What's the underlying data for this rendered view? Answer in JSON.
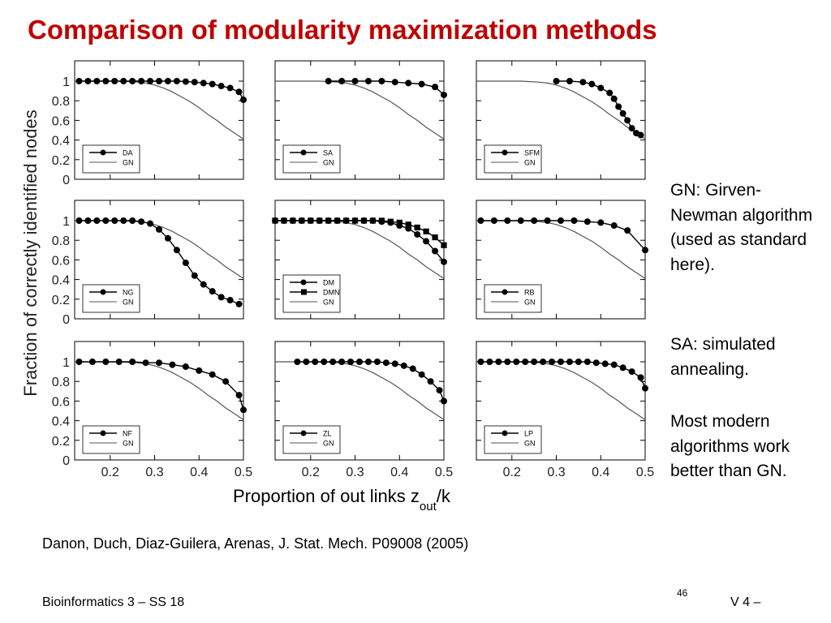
{
  "slide": {
    "title": "Comparison of modularity maximization methods",
    "citation": "Danon, Duch, Diaz-Guilera, Arenas, J. Stat. Mech. P09008 (2005)",
    "footer_left": "Bioinformatics 3 – SS 18",
    "page_number": "46",
    "footer_right": "V 4 –",
    "notes": [
      "GN: Girven-Newman algorithm (used as standard here).",
      "SA: simulated annealing.",
      "Most modern algorithms work better than GN."
    ],
    "colors": {
      "title": "#c00000"
    }
  },
  "chart_data": {
    "type": "line",
    "ylabel": "Fraction of correctly identified nodes",
    "xlabel": "Proportion of out links z",
    "xlabel_sub": "out",
    "xlabel_suffix": "/k",
    "xlim": [
      0.12,
      0.5
    ],
    "ylim": [
      0,
      1
    ],
    "x_ticks": [
      "0.2",
      "0.3",
      "0.4",
      "0.5"
    ],
    "y_ticks": [
      "0",
      "0.2",
      "0.4",
      "0.6",
      "0.8",
      "1"
    ],
    "gn_reference": {
      "name": "GN",
      "x": [
        0.12,
        0.15,
        0.18,
        0.2,
        0.22,
        0.24,
        0.26,
        0.28,
        0.3,
        0.32,
        0.34,
        0.36,
        0.38,
        0.4,
        0.42,
        0.44,
        0.46,
        0.48,
        0.5
      ],
      "y": [
        1.0,
        1.0,
        1.0,
        1.0,
        1.0,
        0.995,
        0.99,
        0.98,
        0.96,
        0.93,
        0.89,
        0.84,
        0.79,
        0.73,
        0.66,
        0.6,
        0.53,
        0.47,
        0.41
      ]
    },
    "panels": [
      {
        "series": [
          {
            "name": "DA",
            "marker": "circle",
            "x": [
              0.13,
              0.15,
              0.17,
              0.19,
              0.21,
              0.23,
              0.25,
              0.27,
              0.29,
              0.31,
              0.33,
              0.35,
              0.37,
              0.39,
              0.41,
              0.43,
              0.45,
              0.47,
              0.49,
              0.5
            ],
            "y": [
              1.0,
              1.0,
              1.0,
              1.0,
              1.0,
              1.0,
              1.0,
              1.0,
              1.0,
              1.0,
              1.0,
              1.0,
              0.995,
              0.99,
              0.98,
              0.97,
              0.95,
              0.93,
              0.89,
              0.81
            ]
          }
        ]
      },
      {
        "series": [
          {
            "name": "SA",
            "marker": "circle",
            "x": [
              0.24,
              0.27,
              0.3,
              0.33,
              0.36,
              0.39,
              0.42,
              0.45,
              0.48,
              0.5
            ],
            "y": [
              1.0,
              1.0,
              1.0,
              1.0,
              1.0,
              0.99,
              0.98,
              0.97,
              0.94,
              0.86
            ]
          }
        ]
      },
      {
        "series": [
          {
            "name": "SFM",
            "marker": "circle",
            "x": [
              0.3,
              0.33,
              0.36,
              0.38,
              0.4,
              0.42,
              0.43,
              0.44,
              0.45,
              0.46,
              0.47,
              0.48,
              0.49
            ],
            "y": [
              1.0,
              1.0,
              0.99,
              0.97,
              0.93,
              0.88,
              0.82,
              0.74,
              0.67,
              0.6,
              0.52,
              0.47,
              0.45
            ]
          }
        ]
      },
      {
        "series": [
          {
            "name": "NG",
            "marker": "circle",
            "x": [
              0.13,
              0.15,
              0.17,
              0.19,
              0.21,
              0.23,
              0.25,
              0.27,
              0.29,
              0.31,
              0.33,
              0.35,
              0.37,
              0.39,
              0.41,
              0.43,
              0.45,
              0.47,
              0.49
            ],
            "y": [
              1.0,
              1.0,
              1.0,
              1.0,
              1.0,
              1.0,
              1.0,
              0.99,
              0.97,
              0.91,
              0.82,
              0.7,
              0.57,
              0.44,
              0.35,
              0.28,
              0.22,
              0.19,
              0.15
            ]
          }
        ]
      },
      {
        "series": [
          {
            "name": "DM",
            "marker": "circle",
            "x": [
              0.12,
              0.14,
              0.16,
              0.18,
              0.2,
              0.22,
              0.24,
              0.26,
              0.28,
              0.3,
              0.32,
              0.34,
              0.36,
              0.38,
              0.4,
              0.42,
              0.44,
              0.46,
              0.48,
              0.5
            ],
            "y": [
              1.0,
              1.0,
              1.0,
              1.0,
              1.0,
              1.0,
              1.0,
              1.0,
              1.0,
              1.0,
              1.0,
              1.0,
              0.99,
              0.98,
              0.95,
              0.92,
              0.86,
              0.79,
              0.69,
              0.58
            ]
          },
          {
            "name": "DMN",
            "marker": "square",
            "x": [
              0.12,
              0.14,
              0.16,
              0.18,
              0.2,
              0.22,
              0.24,
              0.26,
              0.28,
              0.3,
              0.32,
              0.34,
              0.36,
              0.38,
              0.4,
              0.42,
              0.44,
              0.46,
              0.48,
              0.5
            ],
            "y": [
              1.0,
              1.0,
              1.0,
              1.0,
              1.0,
              1.0,
              1.0,
              1.0,
              1.0,
              1.0,
              1.0,
              1.0,
              1.0,
              0.99,
              0.98,
              0.96,
              0.93,
              0.89,
              0.83,
              0.75
            ]
          }
        ]
      },
      {
        "series": [
          {
            "name": "RB",
            "marker": "circle",
            "x": [
              0.13,
              0.16,
              0.19,
              0.22,
              0.25,
              0.28,
              0.31,
              0.34,
              0.37,
              0.4,
              0.43,
              0.46,
              0.5
            ],
            "y": [
              1.0,
              1.0,
              1.0,
              1.0,
              1.0,
              1.0,
              1.0,
              1.0,
              0.99,
              0.98,
              0.95,
              0.9,
              0.7
            ]
          }
        ]
      },
      {
        "series": [
          {
            "name": "NF",
            "marker": "circle",
            "x": [
              0.13,
              0.16,
              0.19,
              0.22,
              0.25,
              0.28,
              0.31,
              0.34,
              0.37,
              0.4,
              0.43,
              0.46,
              0.49,
              0.5
            ],
            "y": [
              1.0,
              1.0,
              1.0,
              1.0,
              1.0,
              0.99,
              0.99,
              0.97,
              0.95,
              0.91,
              0.87,
              0.8,
              0.66,
              0.51
            ]
          }
        ]
      },
      {
        "series": [
          {
            "name": "ZL",
            "marker": "circle",
            "x": [
              0.17,
              0.19,
              0.21,
              0.23,
              0.25,
              0.27,
              0.29,
              0.31,
              0.33,
              0.35,
              0.37,
              0.39,
              0.41,
              0.43,
              0.45,
              0.47,
              0.49,
              0.5
            ],
            "y": [
              1.0,
              1.0,
              1.0,
              1.0,
              1.0,
              1.0,
              1.0,
              1.0,
              1.0,
              1.0,
              0.99,
              0.98,
              0.96,
              0.93,
              0.87,
              0.8,
              0.71,
              0.6
            ]
          }
        ]
      },
      {
        "series": [
          {
            "name": "LP",
            "marker": "circle",
            "x": [
              0.13,
              0.15,
              0.17,
              0.19,
              0.21,
              0.23,
              0.25,
              0.27,
              0.29,
              0.31,
              0.33,
              0.35,
              0.37,
              0.39,
              0.41,
              0.43,
              0.45,
              0.47,
              0.49,
              0.5
            ],
            "y": [
              1.0,
              1.0,
              1.0,
              1.0,
              1.0,
              1.0,
              1.0,
              1.0,
              1.0,
              1.0,
              1.0,
              1.0,
              1.0,
              0.99,
              0.98,
              0.97,
              0.94,
              0.9,
              0.84,
              0.73
            ]
          }
        ]
      }
    ]
  }
}
